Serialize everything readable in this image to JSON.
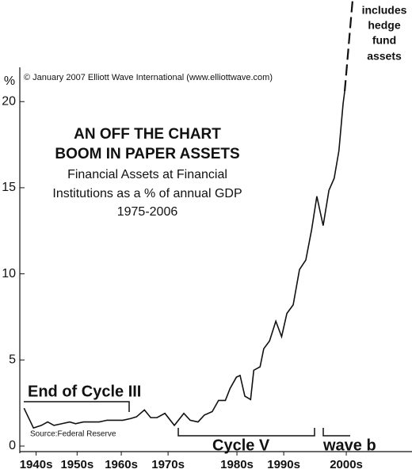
{
  "chart_data": {
    "type": "line",
    "title": [
      "AN OFF THE CHART",
      "BOOM IN PAPER ASSETS"
    ],
    "subtitle": [
      "Financial Assets at Financial",
      "Institutions as a % of annual GDP",
      "1975-2006"
    ],
    "ylabel": "%",
    "copyright": "© January 2007 Elliott Wave International (www.elliottwave.com)",
    "source": "Source:Federal Reserve",
    "annotations": [
      "End of Cycle III",
      "Cycle V",
      "wave b",
      "includes",
      "hedge",
      "fund",
      "assets"
    ],
    "series": [
      {
        "color": "#111111",
        "style": "solid",
        "x": [
          1945.0,
          1946.8,
          1948.3,
          1949.5,
          1950.7,
          1952.2,
          1953.7,
          1954.8,
          1956.3,
          1957.8,
          1959.3,
          1960.8,
          1962.3,
          1963.8,
          1965.3,
          1966.4,
          1967.9,
          1969.1,
          1970.3,
          1971.8,
          1973.6,
          1975.4,
          1976.6,
          1978.1,
          1979.3,
          1980.8,
          1982.0,
          1983.3,
          1984.2,
          1985.4,
          1986.1,
          1987.0,
          1988.1,
          1988.7,
          1989.9,
          1990.6,
          1991.7,
          1992.9,
          1994.0,
          1995.0,
          1996.2,
          1997.4,
          1998.6,
          1999.7,
          2000.7,
          2001.9,
          2003.0,
          2004.0,
          2004.9,
          2005.7,
          2006.0
        ],
        "values": [
          2.2,
          1.05,
          1.2,
          1.4,
          1.2,
          1.3,
          1.4,
          1.3,
          1.4,
          1.4,
          1.4,
          1.5,
          1.5,
          1.5,
          1.6,
          1.7,
          2.1,
          1.65,
          1.65,
          1.9,
          1.2,
          1.9,
          1.5,
          1.4,
          1.8,
          2.0,
          2.65,
          2.65,
          3.35,
          4.0,
          4.1,
          2.9,
          2.7,
          4.4,
          4.6,
          5.65,
          6.1,
          7.25,
          6.35,
          7.7,
          8.2,
          10.25,
          10.8,
          12.55,
          14.5,
          12.8,
          14.85,
          15.55,
          17.15,
          19.9,
          20.6
        ]
      },
      {
        "color": "#111111",
        "style": "dashed",
        "x": [
          2006.0,
          2007.5
        ],
        "values": [
          20.6,
          25.9
        ]
      }
    ],
    "xlim": [
      1944.2,
      2018.8
    ],
    "xticks": [
      {
        "value": 1947.3,
        "label": "1940s"
      },
      {
        "value": 1955.1,
        "label": "1950s"
      },
      {
        "value": 1963.5,
        "label": "1960s"
      },
      {
        "value": 1972.4,
        "label": "1970s"
      },
      {
        "value": 1985.5,
        "label": "1980s"
      },
      {
        "value": 1994.4,
        "label": "1990s"
      },
      {
        "value": 2006.3,
        "label": "2000s"
      }
    ],
    "ylim": [
      0,
      25.9
    ],
    "yticks": [
      0,
      5,
      10,
      15,
      20
    ],
    "grid": false
  }
}
